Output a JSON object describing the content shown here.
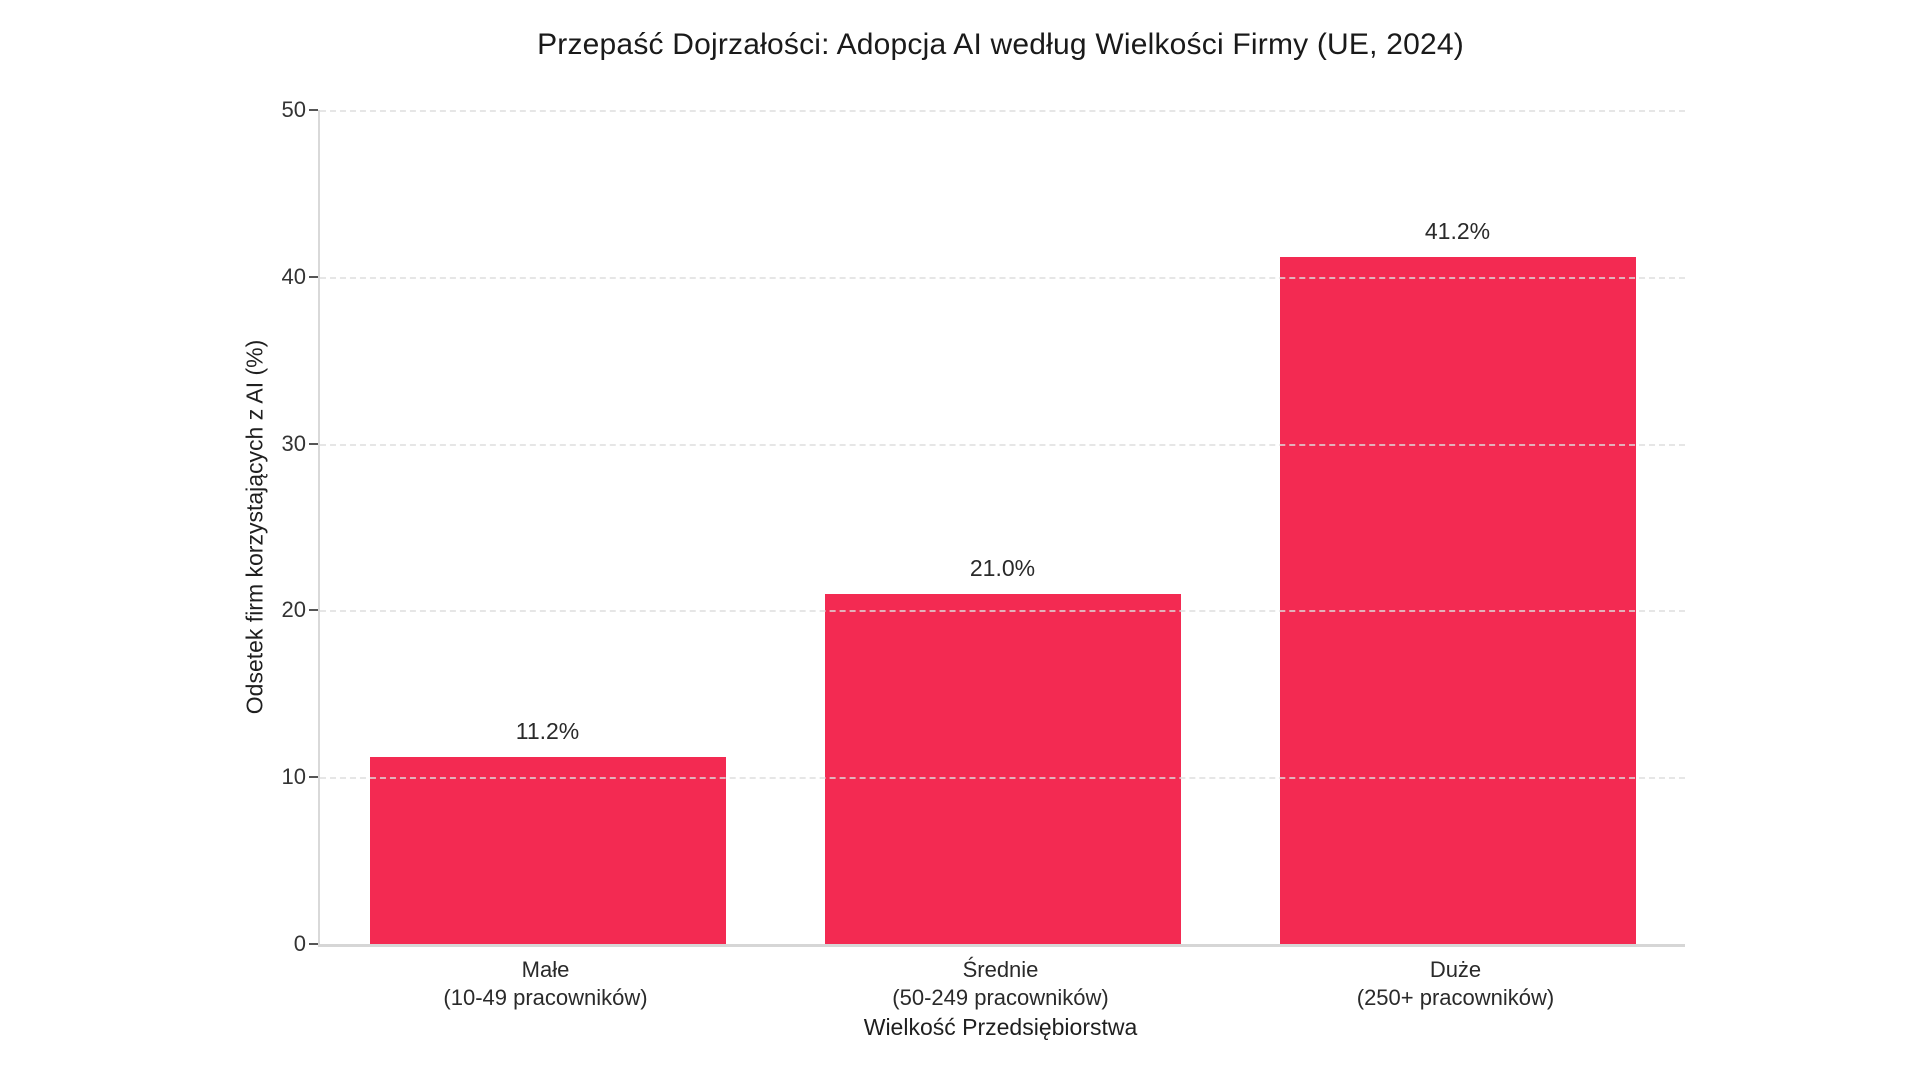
{
  "chart_data": {
    "type": "bar",
    "title": "Przepaść Dojrzałości: Adopcja AI według Wielkości Firmy (UE, 2024)",
    "xlabel": "Wielkość Przedsiębiorstwa",
    "ylabel": "Odsetek firm korzystających z AI (%)",
    "categories": [
      {
        "label": "Małe",
        "sublabel": "(10-49 pracowników)"
      },
      {
        "label": "Średnie",
        "sublabel": "(50-249 pracowników)"
      },
      {
        "label": "Duże",
        "sublabel": "(250+ pracowników)"
      }
    ],
    "values": [
      11.2,
      21.0,
      41.2
    ],
    "value_labels": [
      "11.2%",
      "21.0%",
      "41.2%"
    ],
    "ylim": [
      0,
      50
    ],
    "yticks": [
      0,
      10,
      20,
      30,
      40,
      50
    ],
    "bar_color": "#f32a52",
    "grid": "horizontal-dashed",
    "legend": "none"
  }
}
